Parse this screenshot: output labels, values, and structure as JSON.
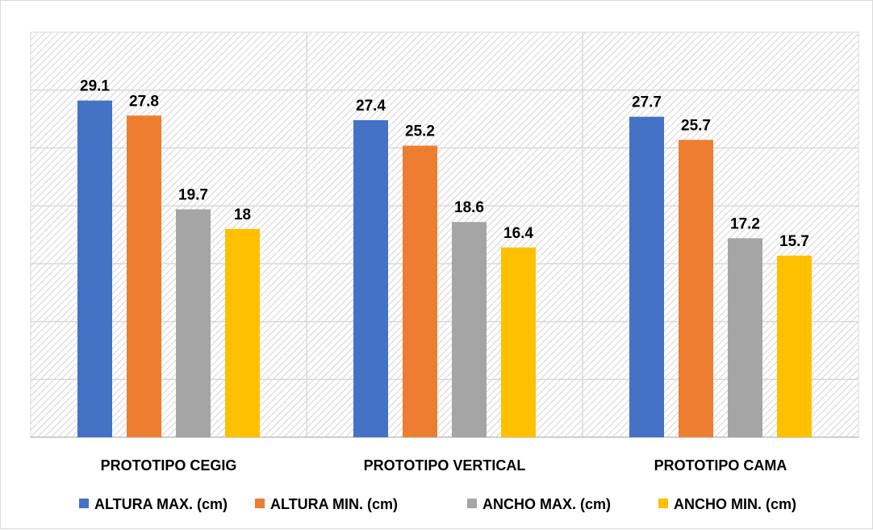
{
  "chart_data": {
    "type": "bar",
    "title": "",
    "xlabel": "",
    "ylabel": "",
    "categories": [
      "PROTOTIPO CEGIG",
      "PROTOTIPO VERTICAL",
      "PROTOTIPO CAMA"
    ],
    "series": [
      {
        "name": "ALTURA MAX. (cm)",
        "values": [
          29.1,
          27.4,
          27.7
        ],
        "color": "#4472c4"
      },
      {
        "name": "ALTURA MIN. (cm)",
        "values": [
          27.8,
          25.2,
          25.7
        ],
        "color": "#ed7d31"
      },
      {
        "name": "ANCHO MAX. (cm)",
        "values": [
          19.7,
          18.6,
          17.2
        ],
        "color": "#a5a5a5"
      },
      {
        "name": "ANCHO MIN. (cm)",
        "values": [
          18,
          16.4,
          15.7
        ],
        "color": "#ffc000"
      }
    ],
    "data_labels": [
      [
        "29.1",
        "27.4",
        "27.7"
      ],
      [
        "27.8",
        "25.2",
        "25.7"
      ],
      [
        "19.7",
        "18.6",
        "17.2"
      ],
      [
        "18",
        "16.4",
        "15.7"
      ]
    ],
    "ylim": [
      0,
      35
    ],
    "grid": true,
    "legend_position": "bottom"
  }
}
